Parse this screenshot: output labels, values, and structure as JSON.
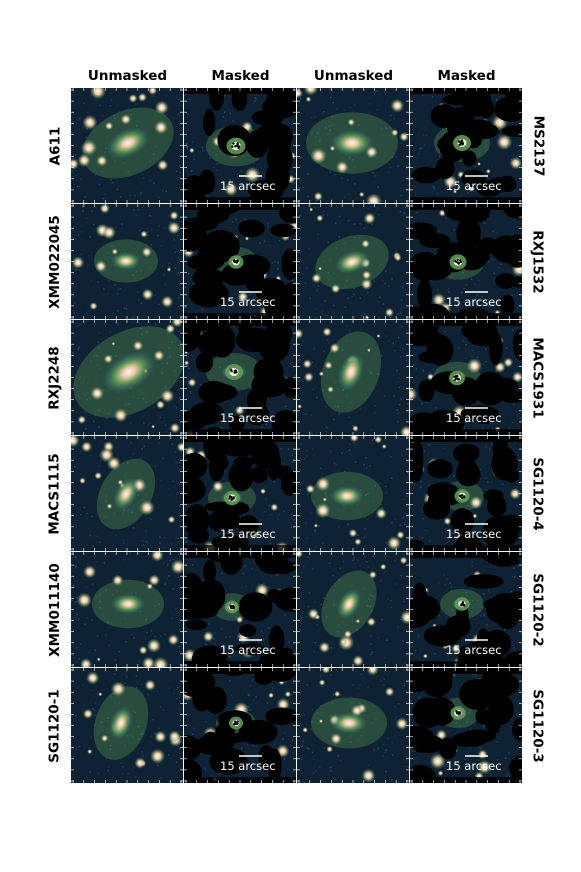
{
  "column_headers": [
    "Unmasked",
    "Masked",
    "Unmasked",
    "Masked"
  ],
  "rows": [
    {
      "left": "A611",
      "right": "MS2137"
    },
    {
      "left": "XMM022045",
      "right": "RXJ1532"
    },
    {
      "left": "RXJ2248",
      "right": "MACS1931"
    },
    {
      "left": "MACS1115",
      "right": "SG1120-4"
    },
    {
      "left": "XMM011140",
      "right": "SG1120-2"
    },
    {
      "left": "SG1120-1",
      "right": "SG1120-3"
    }
  ],
  "scale_bar_label": "15 arcsec",
  "colors": {
    "sky_dark": "#0e2233",
    "sky_mid": "#2a5f7a",
    "halo_green": "#5f9a55",
    "core_tan": "#e8c9a8",
    "core_white": "#fff6ee",
    "mask_black": "#000000"
  }
}
